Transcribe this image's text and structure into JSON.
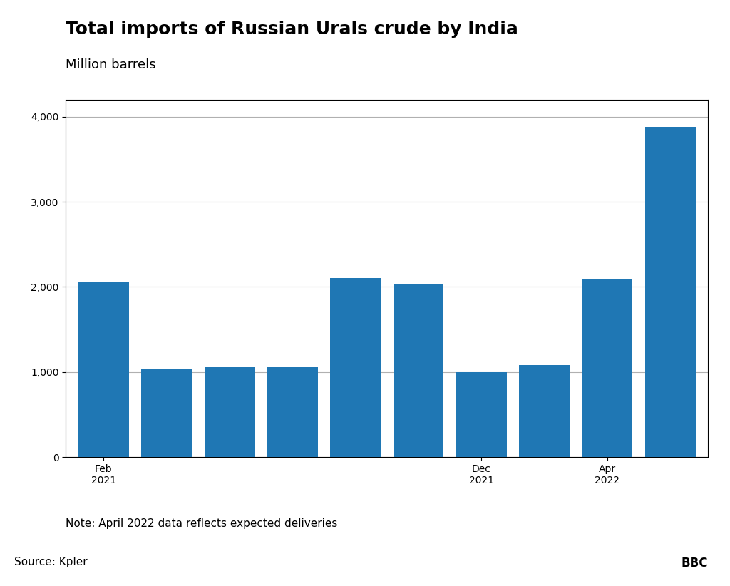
{
  "chart_data": {
    "type": "bar",
    "title": "Total imports of Russian Urals crude by India",
    "subtitle": "Million barrels",
    "annotations": [
      "Note: April 2022 data reflects expected deliveries",
      "Source: Kpler",
      "BBC"
    ],
    "categories": [
      "Feb\n2021",
      null,
      null,
      null,
      null,
      null,
      "Dec\n2021",
      null,
      "Apr\n2022",
      null
    ],
    "values": [
      2060,
      1040,
      1060,
      1060,
      2100,
      2030,
      1000,
      1080,
      2090,
      3880
    ],
    "ylim": [
      0,
      4200
    ],
    "yticks": [
      0,
      {
        "value": 1000,
        "label": "1,000"
      },
      {
        "value": 2000,
        "label": "2,000"
      },
      {
        "value": 3000,
        "label": "3,000"
      },
      {
        "value": 4000,
        "label": "4,000"
      }
    ],
    "grid": true
  }
}
